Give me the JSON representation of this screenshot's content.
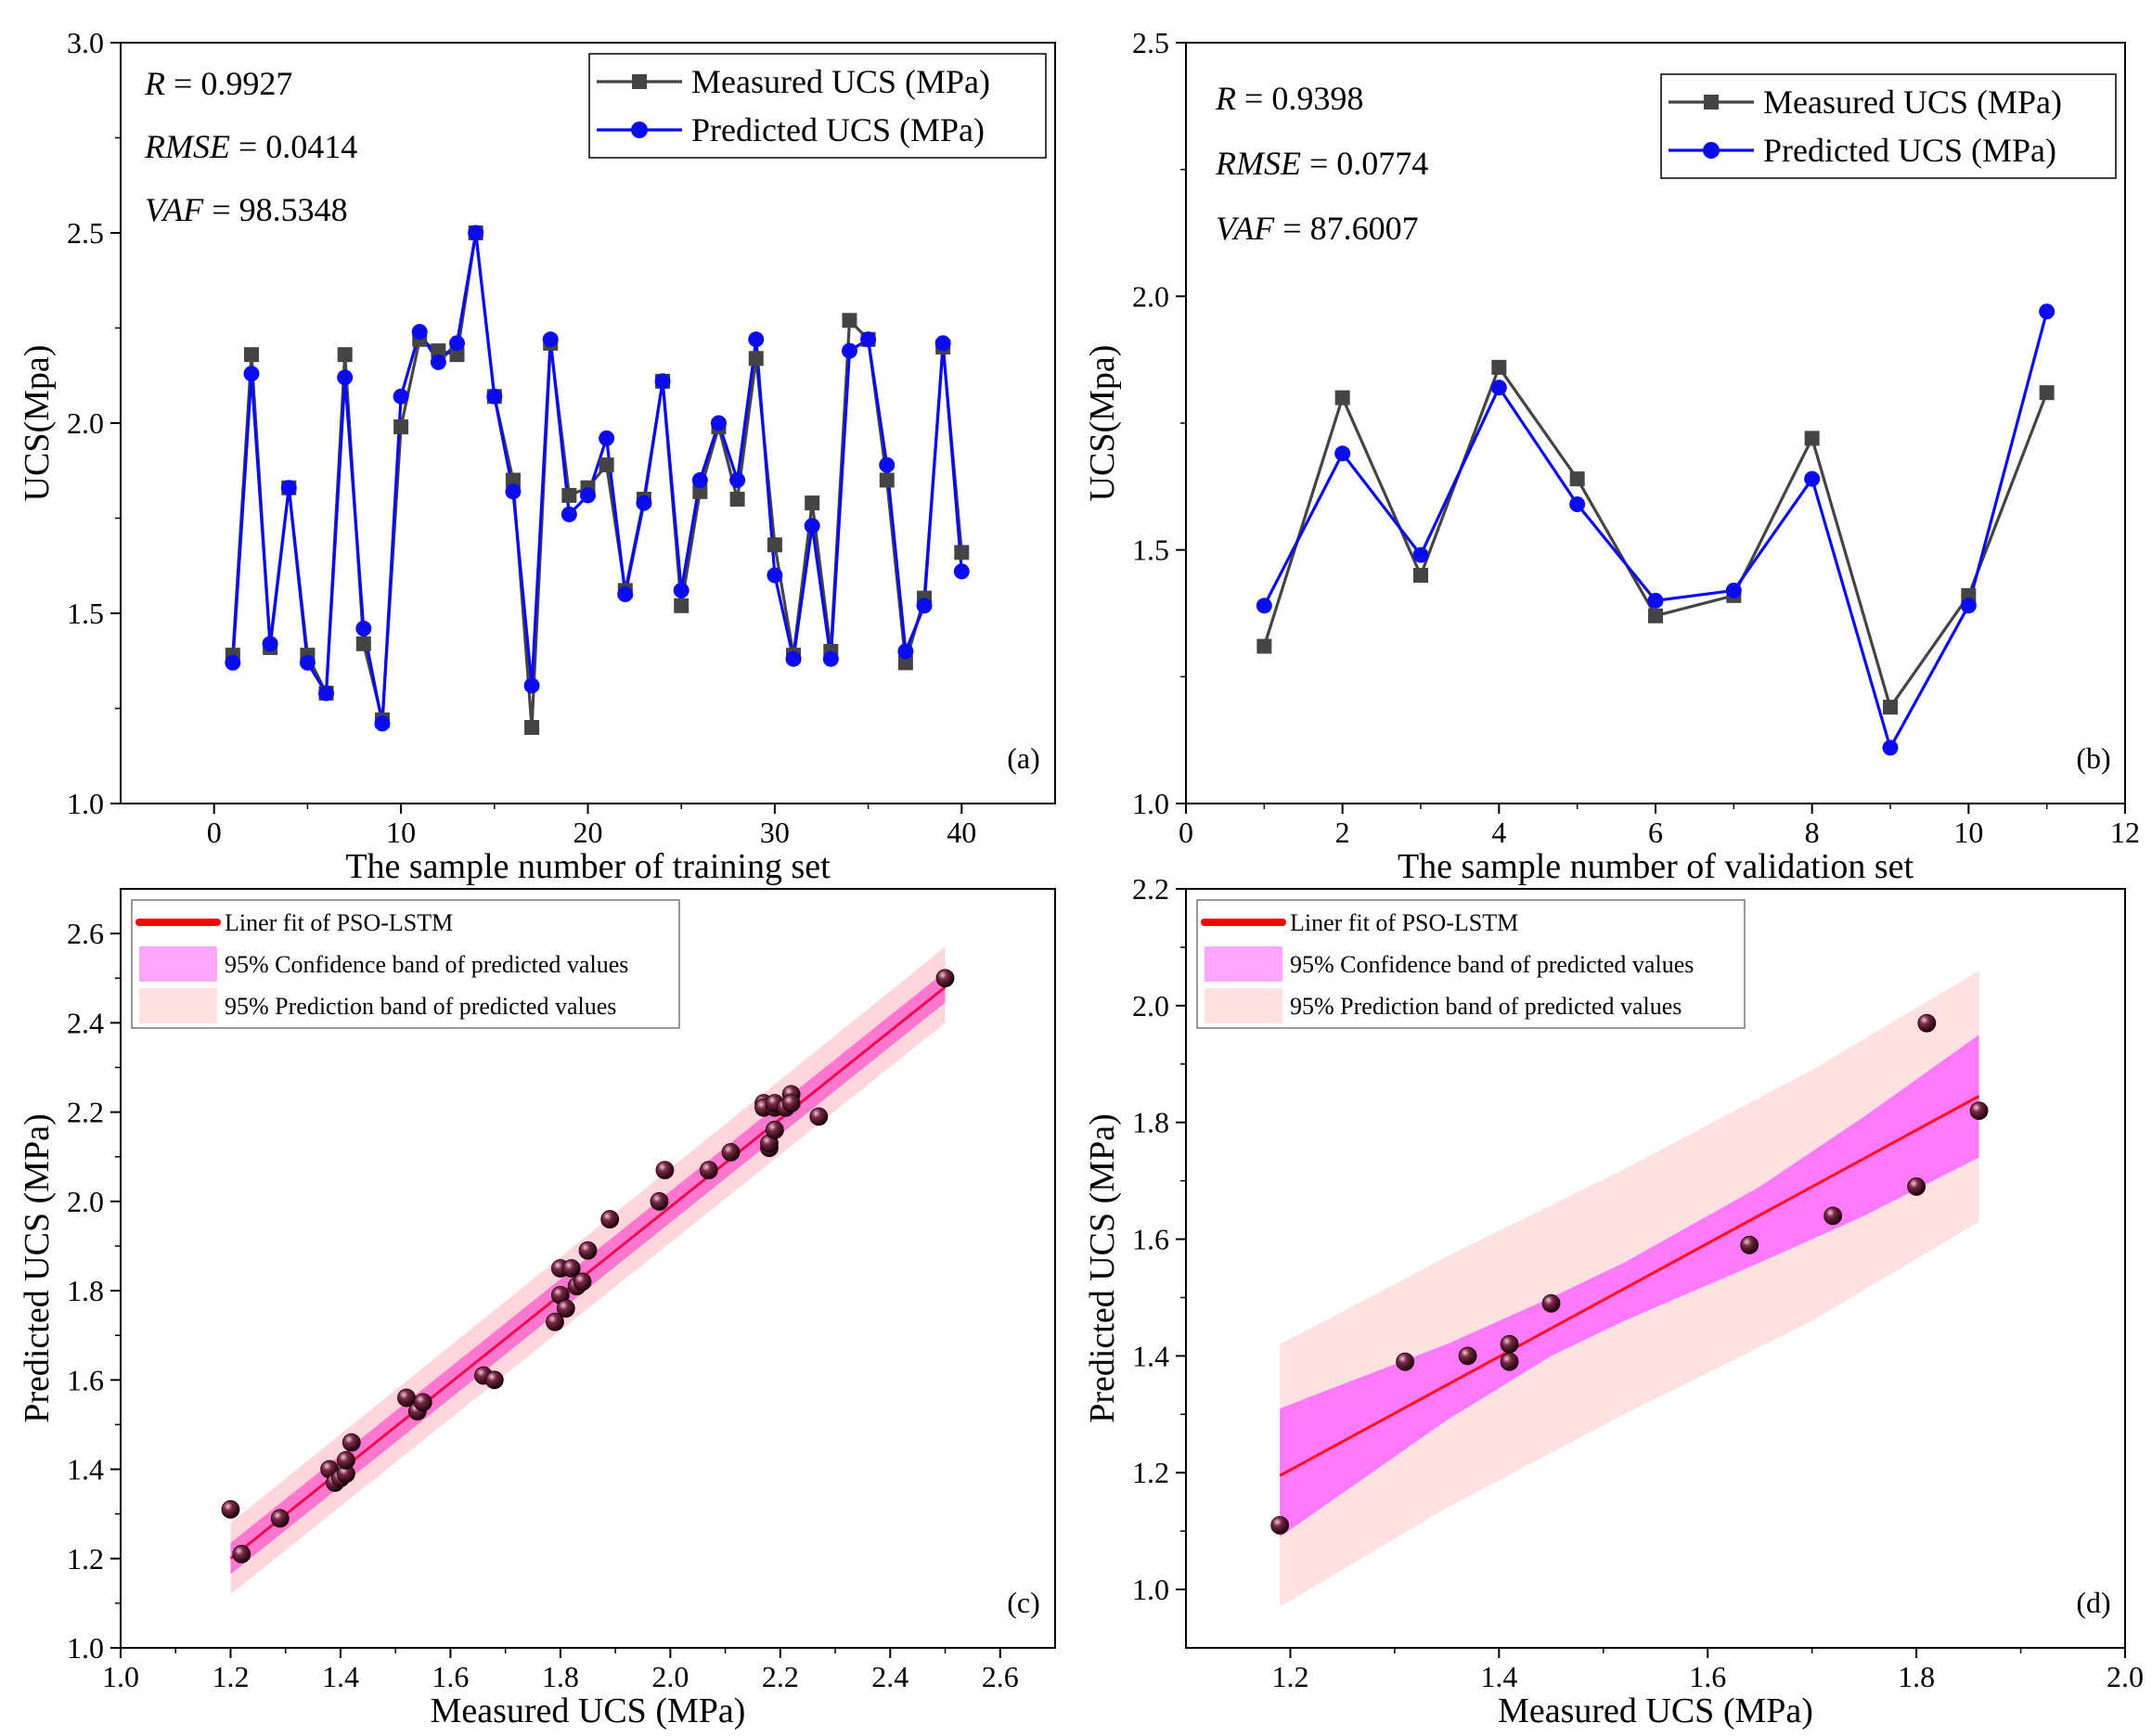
{
  "chart_data": [
    {
      "id": "a",
      "type": "line",
      "panel_label": "(a)",
      "xlabel": "The sample number of training set",
      "ylabel": "UCS(Mpa)",
      "xlim": [
        -5,
        45
      ],
      "ylim": [
        1.0,
        3.0
      ],
      "xticks": [
        0,
        10,
        20,
        30,
        40
      ],
      "yticks": [
        1.0,
        1.5,
        2.0,
        2.5,
        3.0
      ],
      "xtick_labels": [
        "0",
        "10",
        "20",
        "30",
        "40"
      ],
      "ytick_labels": [
        "1.0",
        "1.5",
        "2.0",
        "2.5",
        "3.0"
      ],
      "stats": [
        {
          "name": "R",
          "value": "0.9927"
        },
        {
          "name": "RMSE",
          "value": "0.0414"
        },
        {
          "name": "VAF",
          "value": "98.5348"
        }
      ],
      "legend_position": "top-right",
      "series": [
        {
          "name": "Measured UCS (MPa)",
          "color": "#444444",
          "marker": "square",
          "x": [
            1,
            2,
            3,
            4,
            5,
            6,
            7,
            8,
            9,
            10,
            11,
            12,
            13,
            14,
            15,
            16,
            17,
            18,
            19,
            20,
            21,
            22,
            23,
            24,
            25,
            26,
            27,
            28,
            29,
            30,
            31,
            32,
            33,
            34,
            35,
            36,
            37,
            38,
            39,
            40
          ],
          "y": [
            1.39,
            2.18,
            1.41,
            1.83,
            1.39,
            1.29,
            2.18,
            1.42,
            1.22,
            1.99,
            2.22,
            2.19,
            2.18,
            2.5,
            2.07,
            1.85,
            1.2,
            2.21,
            1.81,
            1.83,
            1.89,
            1.56,
            1.8,
            2.11,
            1.52,
            1.82,
            1.99,
            1.8,
            2.17,
            1.68,
            1.39,
            1.79,
            1.4,
            2.27,
            2.22,
            1.85,
            1.37,
            1.54,
            2.2,
            1.66
          ]
        },
        {
          "name": "Predicted UCS (MPa)",
          "color": "#0b0bf0",
          "marker": "circle",
          "x": [
            1,
            2,
            3,
            4,
            5,
            6,
            7,
            8,
            9,
            10,
            11,
            12,
            13,
            14,
            15,
            16,
            17,
            18,
            19,
            20,
            21,
            22,
            23,
            24,
            25,
            26,
            27,
            28,
            29,
            30,
            31,
            32,
            33,
            34,
            35,
            36,
            37,
            38,
            39,
            40
          ],
          "y": [
            1.37,
            2.13,
            1.42,
            1.83,
            1.37,
            1.29,
            2.12,
            1.46,
            1.21,
            2.07,
            2.24,
            2.16,
            2.21,
            2.5,
            2.07,
            1.82,
            1.31,
            2.22,
            1.76,
            1.81,
            1.96,
            1.55,
            1.79,
            2.11,
            1.56,
            1.85,
            2.0,
            1.85,
            2.22,
            1.6,
            1.38,
            1.73,
            1.38,
            2.19,
            2.22,
            1.89,
            1.4,
            1.52,
            2.21,
            1.61
          ]
        }
      ]
    },
    {
      "id": "b",
      "type": "line",
      "panel_label": "(b)",
      "xlabel": "The sample number of validation set",
      "ylabel": "UCS(Mpa)",
      "xlim": [
        0,
        12
      ],
      "ylim": [
        1.0,
        2.5
      ],
      "xticks": [
        0,
        2,
        4,
        6,
        8,
        10,
        12
      ],
      "yticks": [
        1.0,
        1.5,
        2.0,
        2.5
      ],
      "xtick_labels": [
        "0",
        "2",
        "4",
        "6",
        "8",
        "10",
        "12"
      ],
      "ytick_labels": [
        "1.0",
        "1.5",
        "2.0",
        "2.5"
      ],
      "stats": [
        {
          "name": "R",
          "value": "0.9398"
        },
        {
          "name": "RMSE",
          "value": "0.0774"
        },
        {
          "name": "VAF",
          "value": "87.6007"
        }
      ],
      "legend_position": "top-right",
      "series": [
        {
          "name": "Measured UCS (MPa)",
          "color": "#444444",
          "marker": "square",
          "x": [
            1,
            2,
            3,
            4,
            5,
            6,
            7,
            8,
            9,
            10,
            11
          ],
          "y": [
            1.31,
            1.8,
            1.45,
            1.86,
            1.64,
            1.37,
            1.41,
            1.72,
            1.19,
            1.41,
            1.81
          ]
        },
        {
          "name": "Predicted UCS (MPa)",
          "color": "#0b0bf0",
          "marker": "circle",
          "x": [
            1,
            2,
            3,
            4,
            5,
            6,
            7,
            8,
            9,
            10,
            11
          ],
          "y": [
            1.39,
            1.69,
            1.49,
            1.82,
            1.59,
            1.4,
            1.42,
            1.64,
            1.11,
            1.39,
            1.97
          ]
        }
      ]
    },
    {
      "id": "c",
      "type": "scatter",
      "panel_label": "(c)",
      "xlabel": "Measured UCS (MPa)",
      "ylabel": "Predicted UCS (MPa)",
      "xlim": [
        1.0,
        2.7
      ],
      "ylim": [
        1.0,
        2.7
      ],
      "xticks": [
        1.0,
        1.2,
        1.4,
        1.6,
        1.8,
        2.0,
        2.2,
        2.4,
        2.6
      ],
      "yticks": [
        1.0,
        1.2,
        1.4,
        1.6,
        1.8,
        2.0,
        2.2,
        2.4,
        2.6
      ],
      "xtick_labels": [
        "1.0",
        "1.2",
        "1.4",
        "1.6",
        "1.8",
        "2.0",
        "2.2",
        "2.4",
        "2.6"
      ],
      "ytick_labels": [
        "1.0",
        "1.2",
        "1.4",
        "1.6",
        "1.8",
        "2.0",
        "2.2",
        "2.4",
        "2.6"
      ],
      "legend": [
        {
          "label": "Liner fit of PSO-LSTM",
          "kind": "line",
          "color": "#ff0000"
        },
        {
          "label": "95% Confidence band of predicted values",
          "kind": "patch",
          "color": "#ffa6ff"
        },
        {
          "label": "95% Prediction band of predicted values",
          "kind": "patch",
          "color": "#ffe1e1"
        }
      ],
      "legend_position": "top-left",
      "fit": {
        "x_range": [
          1.2,
          2.5
        ],
        "y_range": [
          1.2,
          2.48
        ],
        "color": "#ee0a4e"
      },
      "confidence_band": {
        "x": [
          1.2,
          2.5
        ],
        "upper": [
          1.235,
          2.515
        ],
        "lower": [
          1.165,
          2.445
        ],
        "color": "#ff66cc"
      },
      "prediction_band": {
        "x": [
          1.2,
          2.5
        ],
        "upper": [
          1.28,
          2.57
        ],
        "lower": [
          1.12,
          2.4
        ],
        "color": "#ffd6dc"
      },
      "points": {
        "x": [
          1.2,
          1.22,
          1.29,
          1.38,
          1.39,
          1.4,
          1.41,
          1.41,
          1.42,
          1.52,
          1.54,
          1.55,
          1.66,
          1.68,
          1.79,
          1.8,
          1.8,
          1.81,
          1.82,
          1.83,
          1.84,
          1.85,
          1.89,
          1.98,
          1.99,
          2.07,
          2.11,
          2.17,
          2.17,
          2.18,
          2.18,
          2.19,
          2.19,
          2.19,
          2.21,
          2.22,
          2.22,
          2.27,
          2.5
        ],
        "y": [
          1.31,
          1.21,
          1.29,
          1.4,
          1.37,
          1.38,
          1.39,
          1.42,
          1.46,
          1.56,
          1.53,
          1.55,
          1.61,
          1.6,
          1.73,
          1.79,
          1.85,
          1.76,
          1.85,
          1.81,
          1.82,
          1.89,
          1.96,
          2.0,
          2.07,
          2.07,
          2.11,
          2.22,
          2.21,
          2.12,
          2.13,
          2.16,
          2.21,
          2.22,
          2.21,
          2.24,
          2.22,
          2.19,
          2.5
        ]
      }
    },
    {
      "id": "d",
      "type": "scatter",
      "panel_label": "(d)",
      "xlabel": "Measured UCS (MPa)",
      "ylabel": "Predicted UCS (MPa)",
      "xlim": [
        1.1,
        2.0
      ],
      "ylim": [
        0.9,
        2.2
      ],
      "xticks": [
        1.2,
        1.4,
        1.6,
        1.8,
        2.0
      ],
      "yticks": [
        1.0,
        1.2,
        1.4,
        1.6,
        1.8,
        2.0,
        2.2
      ],
      "xtick_labels": [
        "1.2",
        "1.4",
        "1.6",
        "1.8",
        "2.0"
      ],
      "ytick_labels": [
        "1.0",
        "1.2",
        "1.4",
        "1.6",
        "1.8",
        "2.0",
        "2.2"
      ],
      "legend": [
        {
          "label": "Liner fit of PSO-LSTM",
          "kind": "line",
          "color": "#ff0000"
        },
        {
          "label": "95% Confidence band of predicted values",
          "kind": "patch",
          "color": "#ffa6ff"
        },
        {
          "label": "95% Prediction band of predicted values",
          "kind": "patch",
          "color": "#ffe1e1"
        }
      ],
      "legend_position": "top-left",
      "fit": {
        "x_range": [
          1.19,
          1.86
        ],
        "y_range": [
          1.195,
          1.845
        ],
        "color": "#ff1020"
      },
      "confidence_band": {
        "x": [
          1.19,
          1.35,
          1.45,
          1.52,
          1.65,
          1.75,
          1.86
        ],
        "upper": [
          1.31,
          1.42,
          1.5,
          1.56,
          1.69,
          1.81,
          1.95
        ],
        "lower": [
          1.09,
          1.29,
          1.4,
          1.46,
          1.56,
          1.64,
          1.74
        ],
        "color": "#ff66ff"
      },
      "prediction_band": {
        "x": [
          1.19,
          1.35,
          1.52,
          1.7,
          1.86
        ],
        "upper": [
          1.42,
          1.57,
          1.72,
          1.89,
          2.06
        ],
        "lower": [
          0.97,
          1.14,
          1.3,
          1.46,
          1.63
        ],
        "color": "#ffe1e1"
      },
      "points": {
        "x": [
          1.19,
          1.31,
          1.37,
          1.41,
          1.41,
          1.45,
          1.64,
          1.72,
          1.8,
          1.81,
          1.86
        ],
        "y": [
          1.11,
          1.39,
          1.4,
          1.42,
          1.39,
          1.49,
          1.59,
          1.64,
          1.69,
          1.97,
          1.82
        ]
      }
    }
  ]
}
